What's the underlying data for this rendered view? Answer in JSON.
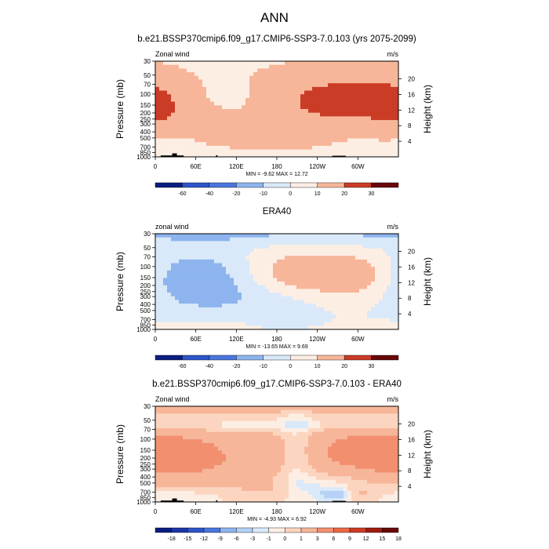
{
  "figure": {
    "title": "ANN"
  },
  "colors": {
    "red_scale": [
      "#fdeee4",
      "#fbd5bf",
      "#f7b699",
      "#f28f6f",
      "#e86a45",
      "#cb3c26",
      "#9c1b10",
      "#670808"
    ],
    "blue_scale": [
      "#d9e9fa",
      "#b5d1f5",
      "#8db4ee",
      "#6a97e6",
      "#4976dd",
      "#2e55c8",
      "#1c36a4",
      "#0a1e80"
    ],
    "terrain": "#000000"
  },
  "chart_data": [
    {
      "type": "heatmap",
      "title": "b.e21.BSSP370cmip6.f09_g17.CMIP6-SSP3-7.0.103 (yrs 2075-2099)",
      "left_label": "Zonal wind",
      "right_label": "m/s",
      "ylabel": "Pressure (mb)",
      "ylabel_right": "Height (km)",
      "x_ticks": [
        "0",
        "60E",
        "120E",
        "180",
        "120W",
        "60W"
      ],
      "x_tick_lon": [
        0,
        60,
        120,
        180,
        240,
        300
      ],
      "y_ticks": [
        "30",
        "50",
        "70",
        "100",
        "150",
        "200",
        "250",
        "300",
        "400",
        "500",
        "700",
        "850",
        "1000"
      ],
      "y_tick_p": [
        30,
        50,
        70,
        100,
        150,
        200,
        250,
        300,
        400,
        500,
        700,
        850,
        1000
      ],
      "right_ticks": [
        "20",
        "16",
        "12",
        "8",
        "4"
      ],
      "right_tick_km": [
        20,
        16,
        12,
        8,
        4
      ],
      "stats": "MIN = -9.62  MAX = 12.72",
      "levels": [
        -70,
        -50,
        -30,
        -15,
        -5,
        0,
        5,
        15,
        25,
        35
      ],
      "level_labels": [
        "-60",
        "-40",
        "-20",
        "-10",
        "0",
        "10",
        "20",
        "30"
      ],
      "terrain": [
        {
          "lon0": 8,
          "lon1": 42,
          "p": 950
        },
        {
          "lon0": 25,
          "lon1": 32,
          "p": 880
        },
        {
          "lon0": 90,
          "lon1": 92,
          "p": 940
        },
        {
          "lon0": 262,
          "lon1": 282,
          "p": 960
        }
      ],
      "regions": [
        {
          "lon": 295,
          "p": 120,
          "lw": 95,
          "ld": 0.8,
          "v": 12
        },
        {
          "lon": 230,
          "p": 150,
          "lw": 150,
          "ld": 1.2,
          "v": 7
        },
        {
          "lon": 5,
          "p": 160,
          "lw": 30,
          "ld": 0.8,
          "v": 4
        },
        {
          "lon": 110,
          "p": 110,
          "lw": 45,
          "ld": 0.5,
          "v": -5
        },
        {
          "lon": 140,
          "p": 560,
          "lw": 70,
          "ld": 0.35,
          "v": 3
        },
        {
          "lon": 20,
          "p": 600,
          "lw": 25,
          "ld": 0.4,
          "v": -3
        },
        {
          "lon": 300,
          "p": 650,
          "lw": 25,
          "ld": 0.4,
          "v": -2
        },
        {
          "lon": 50,
          "p": 270,
          "lw": 45,
          "ld": 0.5,
          "v": 3
        }
      ]
    },
    {
      "type": "heatmap",
      "title": "ERA40",
      "left_label": "zonal wind",
      "right_label": "m/s",
      "ylabel": "Pressure (mb)",
      "ylabel_right": "Height (km)",
      "x_ticks": [
        "0",
        "60E",
        "120E",
        "180",
        "120W",
        "60W"
      ],
      "x_tick_lon": [
        0,
        60,
        120,
        180,
        240,
        300
      ],
      "y_ticks": [
        "30",
        "50",
        "70",
        "100",
        "150",
        "200",
        "250",
        "300",
        "400",
        "500",
        "700",
        "850",
        "1000"
      ],
      "y_tick_p": [
        30,
        50,
        70,
        100,
        150,
        200,
        250,
        300,
        400,
        500,
        700,
        850,
        1000
      ],
      "right_ticks": [
        "20",
        "16",
        "12",
        "8",
        "4"
      ],
      "right_tick_km": [
        20,
        16,
        12,
        8,
        4
      ],
      "stats": "MIN = -13.65  MAX =  9.69",
      "levels": [
        -70,
        -50,
        -30,
        -15,
        -5,
        0,
        5,
        15,
        25,
        35
      ],
      "level_labels": [
        "-60",
        "-40",
        "-20",
        "-10",
        "0",
        "10",
        "20",
        "30"
      ],
      "terrain": [],
      "regions": [
        {
          "lon": 215,
          "p": 140,
          "lw": 55,
          "ld": 0.7,
          "v": 9
        },
        {
          "lon": 300,
          "p": 140,
          "lw": 35,
          "ld": 0.55,
          "v": 7
        },
        {
          "lon": 200,
          "p": 30,
          "lw": 400,
          "ld": 0.3,
          "v": -6
        },
        {
          "lon": 60,
          "p": 140,
          "lw": 50,
          "ld": 0.7,
          "v": -6
        },
        {
          "lon": 80,
          "p": 260,
          "lw": 70,
          "ld": 0.9,
          "v": -4
        },
        {
          "lon": 190,
          "p": 350,
          "lw": 60,
          "ld": 0.5,
          "v": -4
        },
        {
          "lon": 100,
          "p": 750,
          "lw": 55,
          "ld": 0.3,
          "v": 2
        },
        {
          "lon": 20,
          "p": 900,
          "lw": 40,
          "ld": 0.25,
          "v": 1
        }
      ]
    },
    {
      "type": "heatmap",
      "title": "b.e21.BSSP370cmip6.f09_g17.CMIP6-SSP3-7.0.103 - ERA40",
      "left_label": "Zonal wind",
      "right_label": "m/s",
      "ylabel": "Pressure (mb)",
      "ylabel_right": "Height (km)",
      "x_ticks": [
        "0",
        "60E",
        "120E",
        "180",
        "120W",
        "60W"
      ],
      "x_tick_lon": [
        0,
        60,
        120,
        180,
        240,
        300
      ],
      "y_ticks": [
        "30",
        "50",
        "70",
        "100",
        "150",
        "200",
        "250",
        "300",
        "400",
        "500",
        "700",
        "850",
        "1000"
      ],
      "y_tick_p": [
        30,
        50,
        70,
        100,
        150,
        200,
        250,
        300,
        400,
        500,
        700,
        850,
        1000
      ],
      "right_ticks": [
        "20",
        "16",
        "12",
        "8",
        "4"
      ],
      "right_tick_km": [
        20,
        16,
        12,
        8,
        4
      ],
      "stats": "MIN = -4.93  MAX =  6.92",
      "levels": [
        -20,
        -16.5,
        -13.5,
        -10.5,
        -7.5,
        -4.5,
        -2,
        -0.5,
        0.5,
        2,
        4.5,
        7.5,
        10.5,
        13.5,
        16.5,
        20
      ],
      "level_labels": [
        "-18",
        "-15",
        "-12",
        "-9",
        "-6",
        "-3",
        "-1",
        "0",
        "1",
        "3",
        "6",
        "9",
        "12",
        "15",
        "18"
      ],
      "terrain": [
        {
          "lon0": 8,
          "lon1": 42,
          "p": 950
        },
        {
          "lon0": 25,
          "lon1": 32,
          "p": 880
        },
        {
          "lon0": 90,
          "lon1": 92,
          "p": 940
        },
        {
          "lon0": 262,
          "lon1": 282,
          "p": 960
        }
      ],
      "regions": [
        {
          "lon": 60,
          "p": 200,
          "lw": 90,
          "ld": 0.8,
          "v": 4
        },
        {
          "lon": 295,
          "p": 150,
          "lw": 90,
          "ld": 0.8,
          "v": 4
        },
        {
          "lon": 200,
          "p": 32,
          "lw": 400,
          "ld": 0.14,
          "v": 2.5
        },
        {
          "lon": 125,
          "p": 62,
          "lw": 80,
          "ld": 0.15,
          "v": -1.5
        },
        {
          "lon": 300,
          "p": 60,
          "lw": 70,
          "ld": 0.15,
          "v": -1.5
        },
        {
          "lon": 210,
          "p": 170,
          "lw": 18,
          "ld": 1.2,
          "v": -2.5
        },
        {
          "lon": 260,
          "p": 600,
          "lw": 45,
          "ld": 0.35,
          "v": -2.5
        },
        {
          "lon": 40,
          "p": 780,
          "lw": 70,
          "ld": 0.25,
          "v": -1.5
        },
        {
          "lon": 265,
          "p": 770,
          "lw": 14,
          "ld": 0.15,
          "v": -4.5
        },
        {
          "lon": 300,
          "p": 720,
          "lw": 25,
          "ld": 0.2,
          "v": 2.5
        },
        {
          "lon": 180,
          "p": 700,
          "lw": 60,
          "ld": 0.3,
          "v": 1.5
        }
      ]
    }
  ]
}
